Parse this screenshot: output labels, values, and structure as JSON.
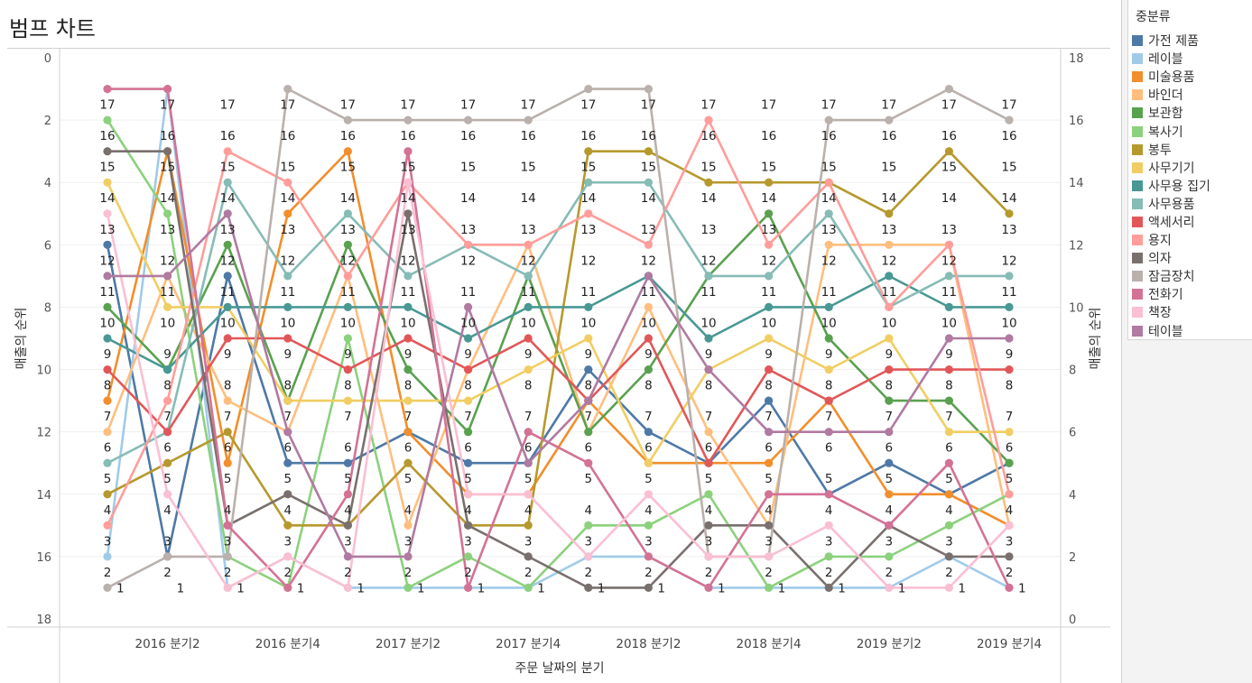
{
  "title": "범프 차트",
  "legend": {
    "title": "중분류",
    "items": [
      {
        "name": "가전 제품",
        "color": "#4e79a7"
      },
      {
        "name": "레이블",
        "color": "#a0cbe8"
      },
      {
        "name": "미술용품",
        "color": "#f28e2b"
      },
      {
        "name": "바인더",
        "color": "#ffbe7d"
      },
      {
        "name": "보관함",
        "color": "#59a14f"
      },
      {
        "name": "복사기",
        "color": "#8cd17d"
      },
      {
        "name": "봉투",
        "color": "#b6992d"
      },
      {
        "name": "사무기기",
        "color": "#f1ce63"
      },
      {
        "name": "사무용 집기",
        "color": "#499894"
      },
      {
        "name": "사무용품",
        "color": "#86bcb6"
      },
      {
        "name": "액세서리",
        "color": "#e15759"
      },
      {
        "name": "용지",
        "color": "#ff9d9a"
      },
      {
        "name": "의자",
        "color": "#79706e"
      },
      {
        "name": "잠금장치",
        "color": "#bab0ac"
      },
      {
        "name": "전화기",
        "color": "#d37295"
      },
      {
        "name": "책장",
        "color": "#fabfd2"
      },
      {
        "name": "테이블",
        "color": "#b07aa1"
      }
    ]
  },
  "chart_data": {
    "type": "line",
    "subtype": "bump",
    "title": "범프 차트",
    "xlabel": "주문 날짜의 분기",
    "ylabel": "매출의 순위",
    "ylabel_right": "매출의 순위",
    "x": [
      "2016 분기1",
      "2016 분기2",
      "2016 분기3",
      "2016 분기4",
      "2017 분기1",
      "2017 분기2",
      "2017 분기3",
      "2017 분기4",
      "2018 분기1",
      "2018 분기2",
      "2018 분기3",
      "2018 분기4",
      "2019 분기1",
      "2019 분기2",
      "2019 분기3",
      "2019 분기4"
    ],
    "x_tick_labels": [
      {
        "index": 1,
        "label": "2016 분기2"
      },
      {
        "index": 3,
        "label": "2016 분기4"
      },
      {
        "index": 5,
        "label": "2017 분기2"
      },
      {
        "index": 7,
        "label": "2017 분기4"
      },
      {
        "index": 9,
        "label": "2018 분기2"
      },
      {
        "index": 11,
        "label": "2018 분기4"
      },
      {
        "index": 13,
        "label": "2019 분기2"
      },
      {
        "index": 15,
        "label": "2019 분기4"
      }
    ],
    "ylim_left": [
      0,
      18
    ],
    "left_ticks": [
      "0",
      "2",
      "4",
      "6",
      "8",
      "10",
      "12",
      "14",
      "16",
      "18"
    ],
    "ylim_right": [
      18,
      0
    ],
    "right_ticks": [
      "0",
      "2",
      "4",
      "6",
      "8",
      "10",
      "12",
      "14",
      "16",
      "18"
    ],
    "data_labels": [
      "17",
      "16",
      "15",
      "14",
      "13",
      "12",
      "11",
      "10",
      "9",
      "8",
      "7",
      "6",
      "5",
      "4",
      "3",
      "2",
      "1"
    ],
    "grid": true,
    "legend_position": "right",
    "series": [
      {
        "name": "가전 제품",
        "ranks": [
          12,
          2,
          11,
          5,
          5,
          6,
          5,
          5,
          8,
          6,
          5,
          7,
          4,
          5,
          4,
          5
        ]
      },
      {
        "name": "레이블",
        "ranks": [
          2,
          17,
          1,
          2,
          1,
          1,
          1,
          1,
          2,
          2,
          1,
          1,
          1,
          1,
          2,
          1
        ]
      },
      {
        "name": "미술용품",
        "ranks": [
          7,
          15,
          5,
          13,
          15,
          6,
          4,
          4,
          7,
          5,
          5,
          5,
          7,
          4,
          4,
          3
        ]
      },
      {
        "name": "바인더",
        "ranks": [
          6,
          11,
          7,
          6,
          11,
          3,
          8,
          12,
          6,
          10,
          6,
          3,
          12,
          12,
          12,
          3
        ]
      },
      {
        "name": "보관함",
        "ranks": [
          10,
          8,
          12,
          7,
          12,
          8,
          6,
          11,
          6,
          8,
          11,
          13,
          9,
          7,
          7,
          5
        ]
      },
      {
        "name": "복사기",
        "ranks": [
          16,
          13,
          2,
          1,
          9,
          1,
          2,
          1,
          3,
          3,
          4,
          1,
          2,
          2,
          3,
          4
        ]
      },
      {
        "name": "봉투",
        "ranks": [
          4,
          5,
          6,
          3,
          3,
          5,
          3,
          3,
          15,
          15,
          14,
          14,
          14,
          13,
          15,
          13
        ]
      },
      {
        "name": "사무기기",
        "ranks": [
          14,
          10,
          10,
          7,
          7,
          7,
          7,
          8,
          9,
          5,
          8,
          9,
          8,
          9,
          6,
          6
        ]
      },
      {
        "name": "사무용 집기",
        "ranks": [
          9,
          8,
          10,
          10,
          10,
          10,
          9,
          10,
          10,
          11,
          9,
          10,
          10,
          11,
          10,
          10
        ]
      },
      {
        "name": "사무용품",
        "ranks": [
          5,
          6,
          14,
          11,
          13,
          11,
          12,
          11,
          14,
          14,
          11,
          11,
          13,
          10,
          11,
          11
        ]
      },
      {
        "name": "액세서리",
        "ranks": [
          8,
          6,
          9,
          9,
          8,
          9,
          8,
          9,
          7,
          9,
          5,
          8,
          7,
          8,
          8,
          8
        ]
      },
      {
        "name": "용지",
        "ranks": [
          3,
          7,
          15,
          14,
          11,
          14,
          12,
          12,
          13,
          12,
          16,
          12,
          14,
          10,
          12,
          4
        ]
      },
      {
        "name": "의자",
        "ranks": [
          15,
          15,
          3,
          4,
          3,
          13,
          3,
          2,
          1,
          1,
          3,
          3,
          1,
          3,
          2,
          2
        ]
      },
      {
        "name": "잠금장치",
        "ranks": [
          1,
          2,
          2,
          17,
          16,
          16,
          16,
          16,
          17,
          17,
          2,
          2,
          16,
          16,
          17,
          16
        ]
      },
      {
        "name": "전화기",
        "ranks": [
          17,
          17,
          3,
          1,
          4,
          15,
          1,
          6,
          5,
          2,
          1,
          4,
          4,
          3,
          5,
          1
        ]
      },
      {
        "name": "책장",
        "ranks": [
          13,
          4,
          1,
          2,
          1,
          14,
          4,
          4,
          2,
          4,
          2,
          2,
          3,
          1,
          1,
          3
        ]
      },
      {
        "name": "테이블",
        "ranks": [
          11,
          11,
          13,
          6,
          2,
          2,
          10,
          5,
          7,
          11,
          8,
          6,
          6,
          6,
          9,
          9
        ]
      }
    ]
  }
}
